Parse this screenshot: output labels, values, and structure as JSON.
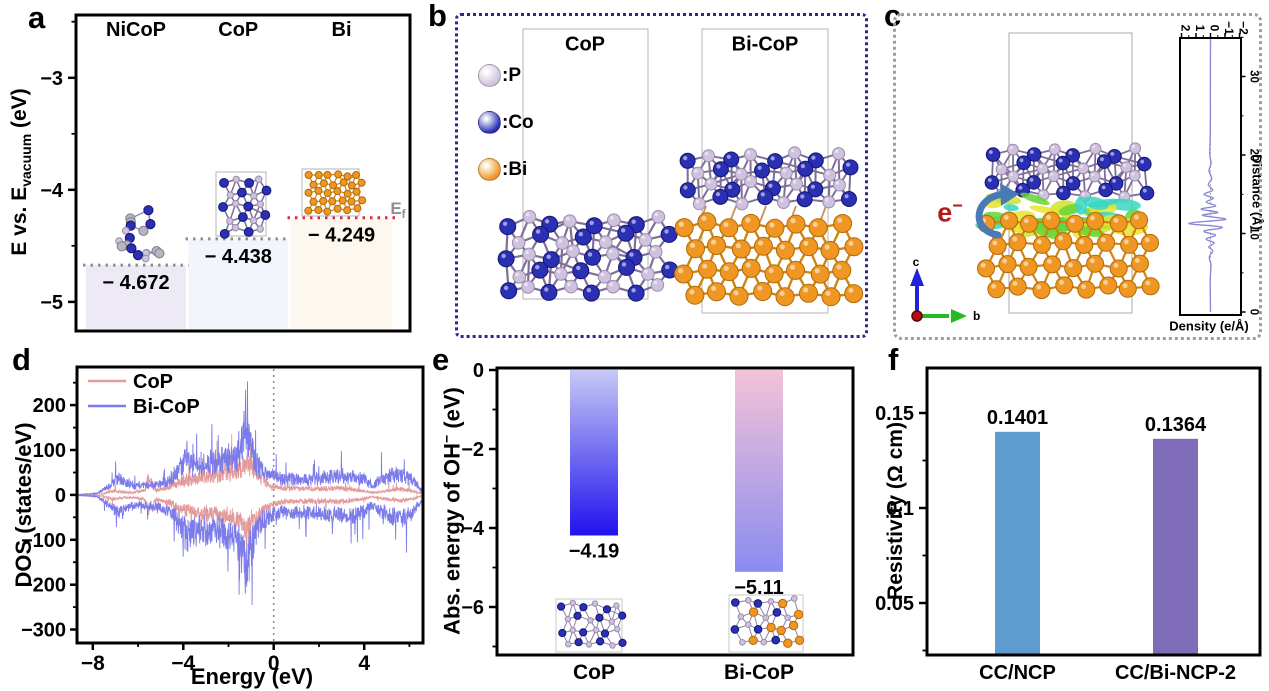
{
  "panels": {
    "a": {
      "label": "a",
      "ylabel_parts": [
        "E vs. E",
        "vacuum",
        " (eV)"
      ],
      "column_headers": [
        "NiCoP",
        "CoP",
        "Bi"
      ],
      "value_labels": [
        "− 4.672",
        "− 4.438",
        "− 4.249"
      ],
      "ef_parts": [
        "E",
        "f"
      ],
      "yticks": [
        "−3",
        "−4",
        "−5"
      ]
    },
    "b": {
      "label": "b",
      "legend": [
        {
          "label": ":P",
          "color": "#cfc2de"
        },
        {
          "label": ":Co",
          "color": "#2a2fb4"
        },
        {
          "label": ":Bi",
          "color": "#ef9722"
        }
      ],
      "titles": [
        "CoP",
        "Bi-CoP"
      ]
    },
    "c": {
      "label": "c",
      "electron_parts": [
        "e",
        "−"
      ],
      "axis_labels": {
        "up": "c",
        "right": "b"
      },
      "density_plot": {
        "xlabel": "Density (e/Å)",
        "ylabel": "Distance (Å)",
        "density_ticks": [
          "2",
          "1",
          "0",
          "−1",
          "−2"
        ],
        "distance_ticks": [
          "0",
          "10",
          "20",
          "30"
        ]
      }
    },
    "d": {
      "label": "d",
      "xlabel": "Energy (eV)",
      "ylabel": "DOS (states/eV)",
      "xticks": [
        "−8",
        "−4",
        "0",
        "4"
      ],
      "yticks": [
        "200",
        "100",
        "0",
        "−100",
        "−200",
        "−300"
      ],
      "legend": [
        "CoP",
        "Bi-CoP"
      ]
    },
    "e": {
      "label": "e",
      "ylabel_parts": [
        "Abs. energy of OH",
        "−",
        " (eV)"
      ],
      "yticks": [
        "0",
        "−2",
        "−4",
        "−6"
      ],
      "categories": [
        "CoP",
        "Bi-CoP"
      ],
      "value_labels": [
        "−4.19",
        "−5.11"
      ]
    },
    "f": {
      "label": "f",
      "ylabel": "Resistivity (Ω cm)",
      "yticks": [
        "0.15",
        "0.1",
        "0.05"
      ],
      "categories": [
        "CC/NCP",
        "CC/Bi-NCP-2"
      ],
      "value_labels": [
        "0.1401",
        "0.1364"
      ]
    }
  },
  "chart_data": [
    {
      "id": "a",
      "type": "bar",
      "subtype": "energy_levels",
      "ylabel": "E vs. E_vacuum (eV)",
      "categories": [
        "NiCoP",
        "CoP",
        "Bi"
      ],
      "values": [
        -4.672,
        -4.438,
        -4.249
      ],
      "ylim": [
        -5.26,
        -2.44
      ],
      "yticks": [
        -3,
        -4,
        -5
      ],
      "fermi_level": -4.249,
      "bar_fills": [
        "#edeaf6",
        "#f2f5fb",
        "#fdf8ef"
      ],
      "level_line_colors": [
        "#8f8f8f",
        "#8f8f8f",
        "#e02840"
      ]
    },
    {
      "id": "d",
      "type": "line",
      "subtype": "density_of_states",
      "xlabel": "Energy (eV)",
      "ylabel": "DOS (states/eV)",
      "xlim": [
        -8.7,
        6.6
      ],
      "ylim": [
        -330,
        285
      ],
      "xticks": [
        -8,
        -4,
        0,
        4
      ],
      "yticks": [
        200,
        100,
        0,
        -100,
        -200,
        -300
      ],
      "fermi_line_x": 0,
      "legend_position": "top-left",
      "series": [
        {
          "name": "CoP",
          "color": "#e39a9a",
          "envelope_x": [
            -8.5,
            -7.6,
            -7.1,
            -6.7,
            -6.2,
            -5.7,
            -5.55,
            -5.2,
            -4.6,
            -4.0,
            -3.4,
            -2.9,
            -2.4,
            -1.9,
            -1.5,
            -1.2,
            -0.9,
            -0.5,
            -0.1,
            0.4,
            1.0,
            2.0,
            3.0,
            3.8,
            4.4,
            5.0,
            5.6,
            6.2,
            6.55
          ],
          "envelope_amp": [
            1,
            3,
            14,
            9,
            8,
            16,
            58,
            14,
            26,
            46,
            56,
            62,
            64,
            72,
            88,
            102,
            86,
            58,
            30,
            22,
            22,
            20,
            22,
            14,
            7,
            14,
            18,
            12,
            4
          ]
        },
        {
          "name": "Bi-CoP",
          "color": "#7b7bea",
          "envelope_x": [
            -8.5,
            -7.8,
            -7.15,
            -6.85,
            -6.5,
            -6.0,
            -5.5,
            -5.0,
            -4.5,
            -4.1,
            -3.85,
            -3.4,
            -2.95,
            -2.6,
            -2.2,
            -1.8,
            -1.45,
            -1.2,
            -0.95,
            -0.7,
            -0.4,
            0.0,
            0.5,
            1.0,
            1.5,
            2.0,
            2.5,
            3.0,
            3.5,
            4.0,
            4.35,
            4.7,
            5.2,
            5.7,
            6.1,
            6.55
          ],
          "envelope_amp": [
            2,
            5,
            38,
            52,
            38,
            28,
            32,
            38,
            54,
            92,
            124,
            96,
            112,
            102,
            118,
            122,
            165,
            218,
            142,
            96,
            76,
            58,
            52,
            56,
            52,
            56,
            62,
            58,
            62,
            52,
            30,
            48,
            62,
            66,
            54,
            16
          ]
        }
      ]
    },
    {
      "id": "c_density",
      "type": "line",
      "subtype": "charge_density_difference_profile",
      "xlabel": "Density (e/Å)",
      "ylabel": "Distance (Å)",
      "density_ticks": [
        2,
        1,
        0,
        -1,
        -2
      ],
      "distance_ticks": [
        0,
        10,
        20,
        30
      ],
      "density_range": [
        2,
        -2
      ],
      "distance_range": [
        0,
        35
      ],
      "points": [
        [
          0,
          0
        ],
        [
          4,
          0.02
        ],
        [
          6,
          -0.03
        ],
        [
          7,
          0.08
        ],
        [
          7.8,
          -0.15
        ],
        [
          8.3,
          0.12
        ],
        [
          8.8,
          -0.25
        ],
        [
          9.3,
          0.3
        ],
        [
          9.8,
          -0.35
        ],
        [
          10.3,
          0.45
        ],
        [
          10.8,
          -0.8
        ],
        [
          11.3,
          1.5
        ],
        [
          11.8,
          -1.05
        ],
        [
          12.3,
          0.55
        ],
        [
          12.7,
          -0.5
        ],
        [
          13.1,
          0.65
        ],
        [
          13.5,
          -0.35
        ],
        [
          14.0,
          0.3
        ],
        [
          14.5,
          -0.2
        ],
        [
          15.0,
          0.45
        ],
        [
          15.5,
          -0.15
        ],
        [
          16.2,
          0.15
        ],
        [
          17.0,
          -0.08
        ],
        [
          18.0,
          0.1
        ],
        [
          19.0,
          -0.04
        ],
        [
          20.0,
          0.05
        ],
        [
          22,
          0.02
        ],
        [
          25,
          0.01
        ],
        [
          30,
          0.01
        ],
        [
          35,
          0
        ]
      ]
    },
    {
      "id": "e",
      "type": "bar",
      "ylabel": "Abs. energy of OH⁻ (eV)",
      "categories": [
        "CoP",
        "Bi-CoP"
      ],
      "values": [
        -4.19,
        -5.11
      ],
      "ylim": [
        -7.2,
        0.05
      ],
      "yticks": [
        0,
        -2,
        -4,
        -6
      ],
      "bar_gradients": [
        [
          "#c6c9f5",
          "#2012ee"
        ],
        [
          "#f3c3d7",
          "#8b8bf0"
        ]
      ]
    },
    {
      "id": "f",
      "type": "bar",
      "ylabel": "Resistivity (Ω cm)",
      "categories": [
        "CC/NCP",
        "CC/Bi-NCP-2"
      ],
      "values": [
        0.1401,
        0.1364
      ],
      "ylim": [
        0.023,
        0.174
      ],
      "yticks": [
        0.15,
        0.1,
        0.05
      ],
      "bar_colors": [
        "#5e9bce",
        "#7e6cb8"
      ]
    }
  ]
}
